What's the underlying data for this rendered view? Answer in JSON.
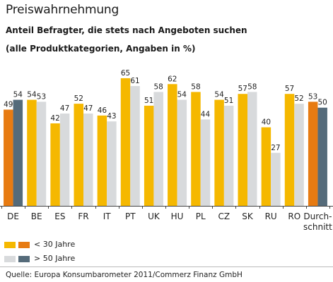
{
  "title": "Preiswahrnehmung",
  "subtitle_line1": "Anteil Befragter, die stets nach Angeboten suchen",
  "subtitle_line2": "(alle Produktkategorien, Angaben in %)",
  "source": "Quelle: Europa Konsumbarometer 2011/Commerz Finanz GmbH",
  "colors": {
    "under30": "#f5b800",
    "over50": "#d8dadc",
    "under30_highlight": "#e77b12",
    "over50_highlight": "#556b7a"
  },
  "legend": {
    "under30_label": "< 30 Jahre",
    "over50_label": "> 50 Jahre"
  },
  "chart_data": {
    "type": "bar",
    "categories": [
      "DE",
      "BE",
      "ES",
      "FR",
      "IT",
      "PT",
      "UK",
      "HU",
      "PL",
      "CZ",
      "SK",
      "RU",
      "RO",
      "Durch-\nschnitt"
    ],
    "highlight_categories": [
      "DE",
      "Durch-\nschnitt"
    ],
    "series": [
      {
        "name": "< 30 Jahre",
        "values": [
          49,
          54,
          42,
          52,
          46,
          65,
          51,
          62,
          58,
          54,
          57,
          40,
          57,
          53
        ]
      },
      {
        "name": "> 50 Jahre",
        "values": [
          54,
          53,
          47,
          47,
          43,
          61,
          58,
          54,
          44,
          51,
          58,
          27,
          52,
          50
        ]
      }
    ],
    "ylim": [
      0,
      70
    ],
    "data_labels": true,
    "grid": false,
    "legend_position": "bottom-left"
  }
}
